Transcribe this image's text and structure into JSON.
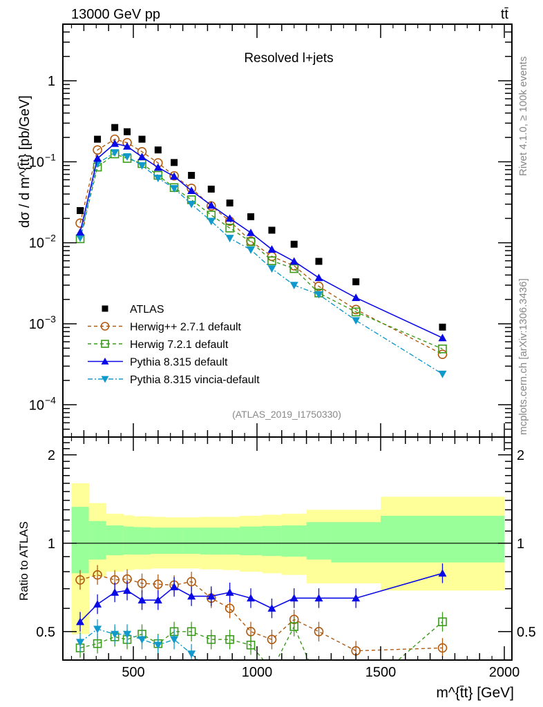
{
  "header": {
    "energy_label": "13000 GeV pp",
    "process_label": "tt̄",
    "side_label_top": "Rivet 4.1.0, ≥ 100k events",
    "side_label_bottom": "mcplots.cern.ch [arXiv:1306.3436]",
    "analysis_id": "(ATLAS_2019_I1750330)"
  },
  "chart_data": [
    {
      "type": "scatter",
      "panel": "main",
      "title": "Resolved l+jets",
      "xlabel": "m^{t̄t} [GeV]",
      "ylabel": "dσ / d m^{t̄t} [pb/GeV]",
      "yscale": "log",
      "xlim": [
        215,
        2030
      ],
      "ylim": [
        4e-05,
        5
      ],
      "yticks": [
        {
          "value": 1,
          "label": "1"
        },
        {
          "value": 0.1,
          "label": "10",
          "exp": "−1"
        },
        {
          "value": 0.01,
          "label": "10",
          "exp": "−2"
        },
        {
          "value": 0.001,
          "label": "10",
          "exp": "−3"
        },
        {
          "value": 0.0001,
          "label": "10",
          "exp": "−4"
        }
      ],
      "legend_position": "lower-left",
      "x": [
        285,
        355,
        425,
        475,
        535,
        600,
        665,
        735,
        815,
        890,
        975,
        1060,
        1150,
        1250,
        1400,
        1750
      ],
      "series": [
        {
          "name": "ATLAS",
          "color": "#000000",
          "marker": "square-filled",
          "line": "none",
          "values": [
            0.025,
            0.19,
            0.265,
            0.235,
            0.19,
            0.14,
            0.098,
            0.068,
            0.046,
            0.031,
            0.021,
            0.0143,
            0.0096,
            0.0059,
            0.0033,
            0.00091
          ]
        },
        {
          "name": "Herwig++ 2.7.1 default",
          "color": "#b05a10",
          "marker": "circle-open",
          "line": "dashed",
          "values": [
            0.0175,
            0.14,
            0.19,
            0.172,
            0.133,
            0.097,
            0.067,
            0.047,
            0.0285,
            0.0185,
            0.0105,
            0.0068,
            0.0052,
            0.0029,
            0.0015,
            0.00042
          ]
        },
        {
          "name": "Herwig 7.2.1 default",
          "color": "#3a9a1a",
          "marker": "square-open",
          "line": "dashed",
          "values": [
            0.0112,
            0.086,
            0.125,
            0.11,
            0.095,
            0.068,
            0.048,
            0.034,
            0.022,
            0.0152,
            0.0103,
            0.006,
            0.0048,
            0.0024,
            0.0014,
            0.00049
          ]
        },
        {
          "name": "Pythia 8.315 default",
          "color": "#0a0ae6",
          "marker": "triangle-up-filled",
          "line": "solid",
          "values": [
            0.0135,
            0.11,
            0.168,
            0.155,
            0.115,
            0.085,
            0.066,
            0.044,
            0.029,
            0.02,
            0.0133,
            0.0083,
            0.0059,
            0.0037,
            0.0021,
            0.00067
          ]
        },
        {
          "name": "Pythia 8.315 vincia-default",
          "color": "#1199cc",
          "marker": "triangle-down-filled",
          "line": "dashdot",
          "values": [
            0.0115,
            0.095,
            0.13,
            0.116,
            0.09,
            0.063,
            0.047,
            0.03,
            0.0185,
            0.0114,
            0.0082,
            0.0048,
            0.003,
            0.0023,
            0.0011,
            0.00024
          ]
        }
      ]
    },
    {
      "type": "scatter",
      "panel": "ratio",
      "ylabel": "Ratio to ATLAS",
      "xlabel": "m^{t̄t} [GeV]",
      "xlim": [
        215,
        2030
      ],
      "ylim": [
        0.4,
        2.3
      ],
      "yscale": "log",
      "yticks": [
        {
          "value": 2,
          "label": "2"
        },
        {
          "value": 1,
          "label": "1"
        },
        {
          "value": 0.5,
          "label": "0.5"
        }
      ],
      "xticks": [
        {
          "value": 500,
          "label": "500"
        },
        {
          "value": 1000,
          "label": "1000"
        },
        {
          "value": 1500,
          "label": "1500"
        },
        {
          "value": 2000,
          "label": "2000"
        }
      ],
      "reference_line": 1,
      "bands": {
        "bin_edges": [
          250,
          320,
          390,
          460,
          500,
          570,
          630,
          700,
          770,
          860,
          930,
          1020,
          1100,
          1200,
          1300,
          1500,
          2000
        ],
        "inner_color": "#99ff99",
        "outer_color": "#ffff99",
        "inner_up": [
          1.33,
          1.19,
          1.15,
          1.14,
          1.135,
          1.13,
          1.13,
          1.13,
          1.13,
          1.13,
          1.14,
          1.145,
          1.15,
          1.18,
          1.18,
          1.24
        ],
        "inner_down": [
          0.79,
          0.88,
          0.91,
          0.915,
          0.915,
          0.92,
          0.92,
          0.92,
          0.915,
          0.915,
          0.91,
          0.905,
          0.9,
          0.88,
          0.86,
          0.86
        ],
        "outer_up": [
          1.6,
          1.37,
          1.26,
          1.245,
          1.235,
          1.23,
          1.225,
          1.225,
          1.23,
          1.23,
          1.24,
          1.25,
          1.26,
          1.3,
          1.3,
          1.44
        ],
        "outer_down": [
          0.49,
          0.77,
          0.8,
          0.81,
          0.815,
          0.82,
          0.82,
          0.82,
          0.815,
          0.81,
          0.8,
          0.79,
          0.78,
          0.73,
          0.73,
          0.69
        ]
      },
      "x": [
        285,
        355,
        425,
        475,
        535,
        600,
        665,
        735,
        815,
        890,
        975,
        1060,
        1150,
        1250,
        1400,
        1750
      ],
      "series": [
        {
          "name": "Herwig++ 2.7.1 default",
          "color": "#b05a10",
          "marker": "circle-open",
          "line": "dashed",
          "values": [
            0.75,
            0.78,
            0.75,
            0.755,
            0.73,
            0.725,
            0.72,
            0.74,
            0.65,
            0.6,
            0.5,
            0.47,
            0.55,
            0.5,
            0.43,
            0.44
          ]
        },
        {
          "name": "Herwig 7.2.1 default",
          "color": "#3a9a1a",
          "marker": "square-open",
          "line": "dashed",
          "values": [
            0.44,
            0.455,
            0.48,
            0.47,
            0.49,
            0.455,
            0.5,
            0.5,
            0.47,
            0.47,
            0.45,
            0.37,
            0.52,
            0.33,
            0.3,
            0.54
          ]
        },
        {
          "name": "Pythia 8.315 default",
          "color": "#0a0ae6",
          "marker": "triangle-up-filled",
          "line": "solid",
          "values": [
            0.54,
            0.62,
            0.68,
            0.69,
            0.64,
            0.64,
            0.71,
            0.66,
            0.66,
            0.68,
            0.65,
            0.6,
            0.65,
            0.65,
            0.65,
            0.79
          ]
        },
        {
          "name": "Pythia 8.315 vincia-default",
          "color": "#1199cc",
          "marker": "triangle-down-filled",
          "line": "dashdot",
          "values": [
            0.46,
            0.51,
            0.49,
            0.49,
            0.47,
            0.45,
            0.47,
            0.42,
            0.36,
            null,
            null,
            null,
            null,
            null,
            null,
            null
          ]
        }
      ]
    }
  ]
}
